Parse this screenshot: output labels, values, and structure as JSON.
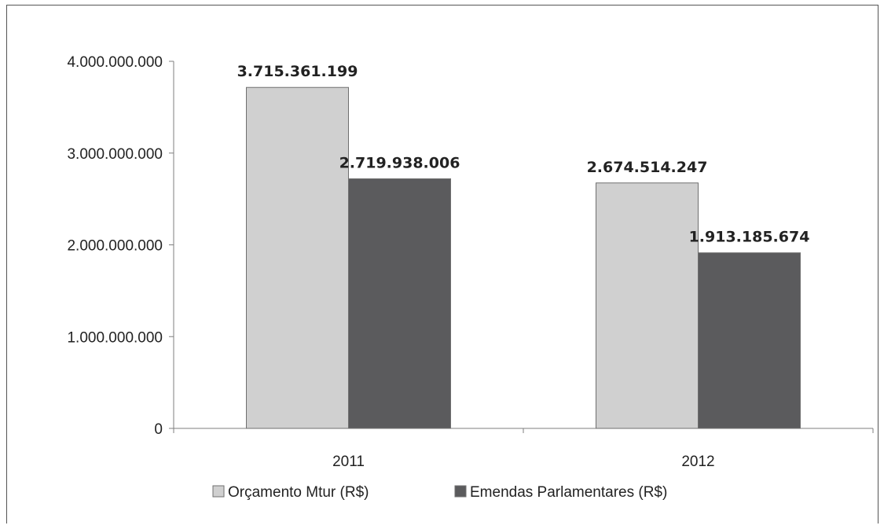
{
  "chart_data": {
    "type": "bar",
    "categories": [
      "2011",
      "2012"
    ],
    "series": [
      {
        "name": "Orçamento Mtur (R$)",
        "values": [
          3715361199,
          2674514247
        ],
        "labels": [
          "3.715.361.199",
          "2.674.514.247"
        ],
        "color": "#d0d0d0"
      },
      {
        "name": "Emendas Parlamentares (R$)",
        "values": [
          2719938006,
          1913185674
        ],
        "labels": [
          "2.719.938.006",
          "1.913.185.674"
        ],
        "color": "#5b5b5d"
      }
    ],
    "ylim": [
      0,
      4000000000
    ],
    "yticks": [
      0,
      1000000000,
      2000000000,
      3000000000,
      4000000000
    ],
    "ytick_labels": [
      "0",
      "1.000.000.000",
      "2.000.000.000",
      "3.000.000.000",
      "4.000.000.000"
    ],
    "grid": false,
    "legend_position": "bottom"
  }
}
